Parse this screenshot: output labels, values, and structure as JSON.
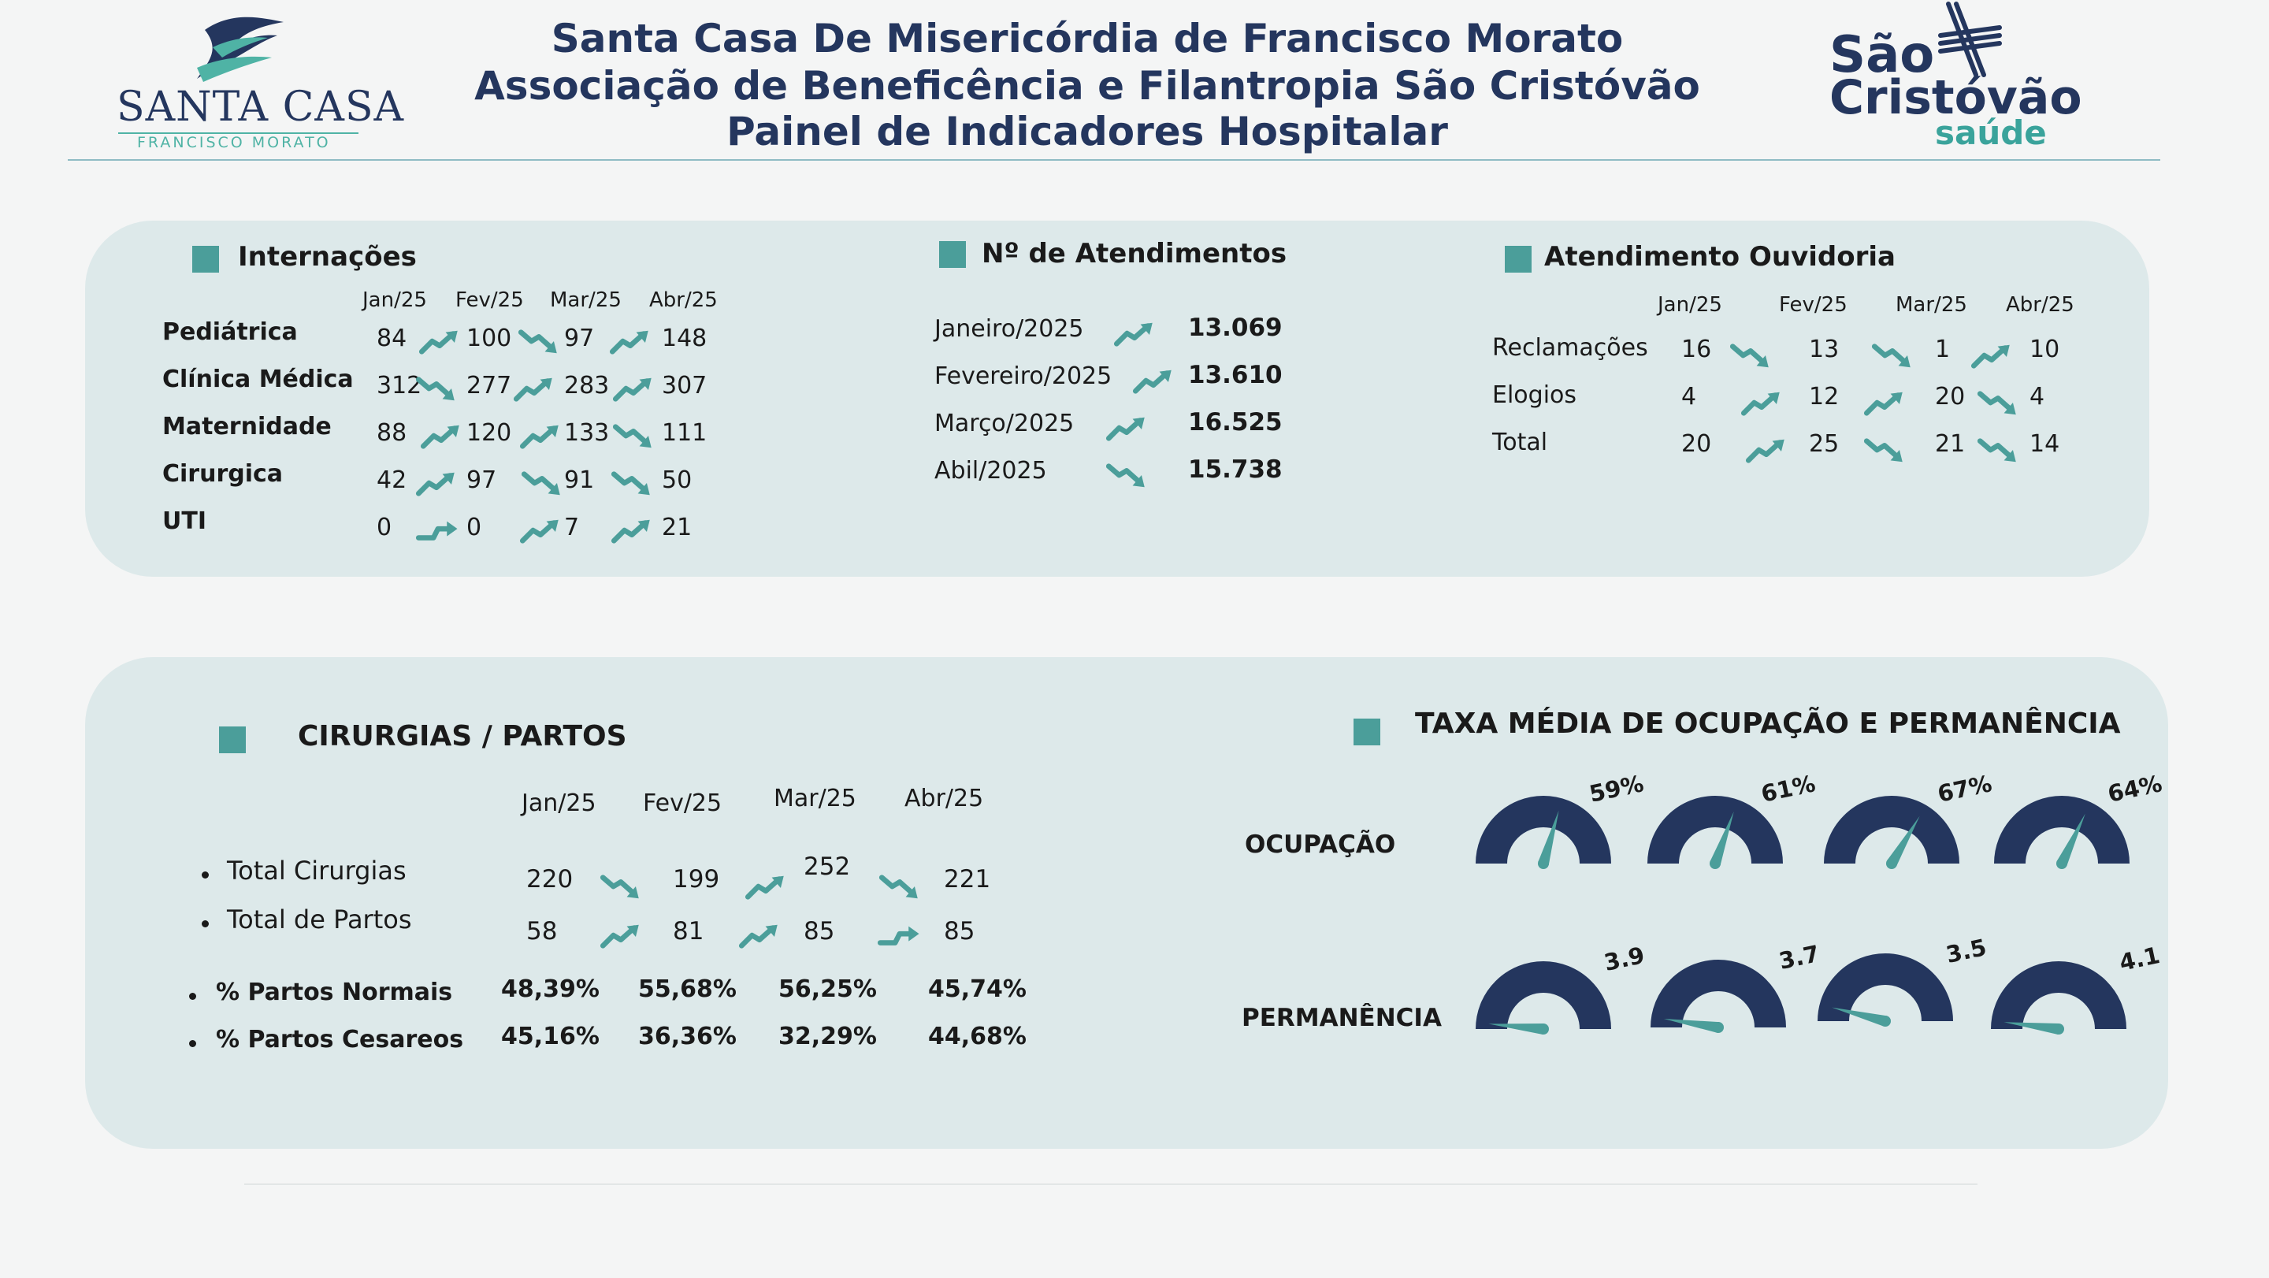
{
  "header": {
    "title_line1": "Santa Casa De Misericórdia de Francisco Morato",
    "title_line2": "Associação de Beneficência e Filantropia São Cristóvão",
    "title_line3": "Painel de Indicadores Hospitalar",
    "logo_left_main": "SANTA CASA",
    "logo_left_sub": "FRANCISCO MORATO",
    "logo_right_line1": "São",
    "logo_right_line2": "Cristóvão",
    "logo_right_line3": "saúde"
  },
  "colors": {
    "navy": "#24365e",
    "teal": "#4b9e9a",
    "panel": "#dde9ea",
    "background": "#f4f5f5"
  },
  "internacoes": {
    "title": "Internações",
    "months": [
      "Jan/25",
      "Fev/25",
      "Mar/25",
      "Abr/25"
    ],
    "rows": [
      {
        "label": "Pediátrica",
        "values": [
          "84",
          "100",
          "97",
          "148"
        ],
        "trends": [
          "up",
          "down",
          "up"
        ]
      },
      {
        "label": "Clínica Médica",
        "values": [
          "312",
          "277",
          "283",
          "307"
        ],
        "trends": [
          "down",
          "up",
          "up"
        ]
      },
      {
        "label": "Maternidade",
        "values": [
          "88",
          "120",
          "133",
          "111"
        ],
        "trends": [
          "up",
          "up",
          "down"
        ]
      },
      {
        "label": "Cirurgica",
        "values": [
          "42",
          "97",
          "91",
          "50"
        ],
        "trends": [
          "up",
          "down",
          "down"
        ]
      },
      {
        "label": "UTI",
        "values": [
          "0",
          "0",
          "7",
          "21"
        ],
        "trends": [
          "flat",
          "up",
          "up"
        ]
      }
    ]
  },
  "atendimentos": {
    "title": "Nº de Atendimentos",
    "rows": [
      {
        "label": "Janeiro/2025",
        "value": "13.069",
        "trend": "up"
      },
      {
        "label": "Fevereiro/2025",
        "value": "13.610",
        "trend": "up"
      },
      {
        "label": "Março/2025",
        "value": "16.525",
        "trend": "up"
      },
      {
        "label": "Abil/2025",
        "value": "15.738",
        "trend": "down"
      }
    ]
  },
  "ouvidoria": {
    "title": "Atendimento Ouvidoria",
    "months": [
      "Jan/25",
      "Fev/25",
      "Mar/25",
      "Abr/25"
    ],
    "rows": [
      {
        "label": "Reclamações",
        "values": [
          "16",
          "13",
          "1",
          "10"
        ],
        "trends": [
          "down",
          "down",
          "up"
        ]
      },
      {
        "label": "Elogios",
        "values": [
          "4",
          "12",
          "20",
          "4"
        ],
        "trends": [
          "up",
          "up",
          "down"
        ]
      },
      {
        "label": "Total",
        "values": [
          "20",
          "25",
          "21",
          "14"
        ],
        "trends": [
          "up",
          "down",
          "down"
        ]
      }
    ]
  },
  "cirurgias": {
    "title": "CIRURGIAS / PARTOS",
    "months": [
      "Jan/25",
      "Fev/25",
      "Mar/25",
      "Abr/25"
    ],
    "rows": [
      {
        "label": "Total Cirurgias",
        "values": [
          "220",
          "199",
          "252",
          "221"
        ],
        "trends": [
          "down",
          "up",
          "down"
        ]
      },
      {
        "label": "Total de Partos",
        "values": [
          "58",
          "81",
          "85",
          "85"
        ],
        "trends": [
          "up",
          "up",
          "flat"
        ]
      }
    ],
    "pct_rows": [
      {
        "label": "% Partos Normais",
        "values": [
          "48,39%",
          "55,68%",
          "56,25%",
          "45,74%"
        ]
      },
      {
        "label": "% Partos Cesareos",
        "values": [
          "45,16%",
          "36,36%",
          "32,29%",
          "44,68%"
        ]
      }
    ]
  },
  "taxa": {
    "title": "TAXA MÉDIA DE OCUPAÇÃO E PERMANÊNCIA",
    "ocupacao_label": "OCUPAÇÃO",
    "permanencia_label": "PERMANÊNCIA",
    "ocupacao": [
      {
        "label": "59%",
        "fraction": 0.59
      },
      {
        "label": "61%",
        "fraction": 0.61
      },
      {
        "label": "67%",
        "fraction": 0.67
      },
      {
        "label": "64%",
        "fraction": 0.64
      }
    ],
    "permanencia": [
      {
        "label": "3.9",
        "fraction": 0.03
      },
      {
        "label": "3.7",
        "fraction": 0.05
      },
      {
        "label": "3.5",
        "fraction": 0.08
      },
      {
        "label": "4.1",
        "fraction": 0.04
      }
    ]
  }
}
